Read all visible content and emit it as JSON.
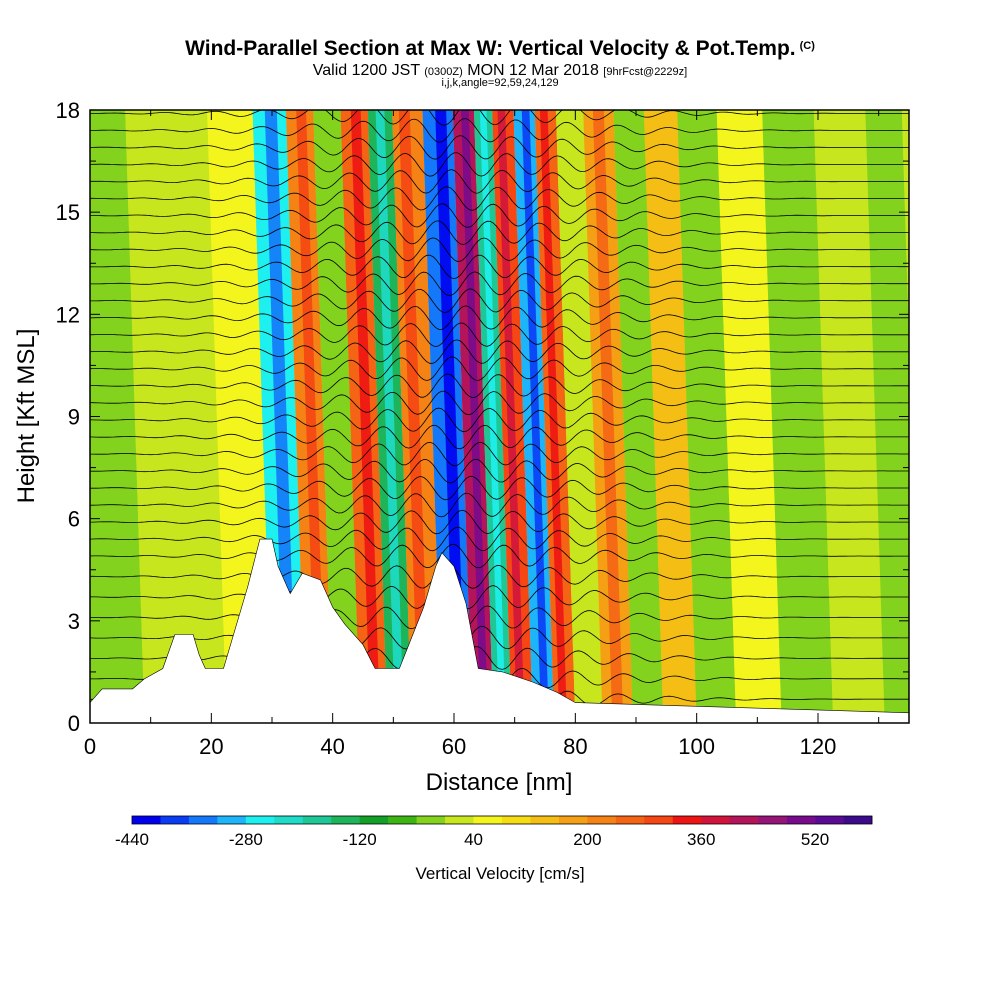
{
  "header": {
    "title": "Wind-Parallel Section at Max W: Vertical Velocity & Pot.Temp.",
    "title_mark": "(C)",
    "subtitle_main": "Valid 1200 JST",
    "subtitle_z": "(0300Z)",
    "subtitle_date": "MON 12 Mar 2018",
    "subtitle_fcst": "[9hrFcst@2229z]",
    "indices": "i,j,k,angle=92,59,24,129"
  },
  "chart_data": {
    "type": "heatmap",
    "xlabel": "Distance [nm]",
    "ylabel": "Height [Kft MSL]",
    "xlim": [
      0,
      135
    ],
    "ylim": [
      0,
      18
    ],
    "x_ticks": [
      0,
      20,
      40,
      60,
      80,
      100,
      120
    ],
    "y_ticks": [
      0,
      3,
      6,
      9,
      12,
      15,
      18
    ],
    "x_tick_labels": [
      "0",
      "20",
      "40",
      "60",
      "80",
      "100",
      "120"
    ],
    "y_tick_labels": [
      "0",
      "3",
      "6",
      "9",
      "12",
      "15",
      "18"
    ],
    "colorbar": {
      "title": "Vertical Velocity [cm/s]",
      "min": -440,
      "max": 600,
      "step": 40,
      "tick_values": [
        -440,
        -280,
        -120,
        40,
        200,
        360,
        520
      ],
      "tick_labels": [
        "-440",
        "-280",
        "-120",
        "40",
        "200",
        "360",
        "520"
      ],
      "colors": [
        "#0000ee",
        "#0a3cf5",
        "#1478fa",
        "#1eb4fa",
        "#1ef0f0",
        "#1edcc8",
        "#1ec896",
        "#1eb45a",
        "#14a028",
        "#3cb414",
        "#82d21e",
        "#c8e61e",
        "#f5f51e",
        "#f5dc14",
        "#f5be14",
        "#f5a014",
        "#f58214",
        "#f56414",
        "#f54614",
        "#ee1414",
        "#d2143c",
        "#b4145a",
        "#961478",
        "#780a8c",
        "#5a0a96",
        "#3c0a8c"
      ]
    },
    "velocity_bands": [
      {
        "x": 0,
        "value": -40
      },
      {
        "x": 18,
        "value": 0
      },
      {
        "x": 27,
        "value": 60
      },
      {
        "x": 33,
        "value": -260
      },
      {
        "x": 38,
        "value": 220
      },
      {
        "x": 42,
        "value": -40
      },
      {
        "x": 47,
        "value": 260
      },
      {
        "x": 51,
        "value": -160
      },
      {
        "x": 55,
        "value": 220
      },
      {
        "x": 61,
        "value": -340
      },
      {
        "x": 65,
        "value": 420
      },
      {
        "x": 68,
        "value": -200
      },
      {
        "x": 71,
        "value": 300
      },
      {
        "x": 75,
        "value": -300
      },
      {
        "x": 78,
        "value": 260
      },
      {
        "x": 82,
        "value": 0
      },
      {
        "x": 87,
        "value": 160
      },
      {
        "x": 92,
        "value": -40
      },
      {
        "x": 97,
        "value": 120
      },
      {
        "x": 103,
        "value": -20
      },
      {
        "x": 110,
        "value": 40
      },
      {
        "x": 118,
        "value": -40
      },
      {
        "x": 127,
        "value": 20
      },
      {
        "x": 135,
        "value": -20
      }
    ],
    "terrain": [
      {
        "x": 0,
        "h": 0.6
      },
      {
        "x": 2,
        "h": 1.0
      },
      {
        "x": 7,
        "h": 1.0
      },
      {
        "x": 9,
        "h": 1.3
      },
      {
        "x": 12,
        "h": 1.6
      },
      {
        "x": 14,
        "h": 2.6
      },
      {
        "x": 17,
        "h": 2.6
      },
      {
        "x": 18,
        "h": 2.0
      },
      {
        "x": 19,
        "h": 1.6
      },
      {
        "x": 22,
        "h": 1.6
      },
      {
        "x": 24,
        "h": 2.8
      },
      {
        "x": 26,
        "h": 4.0
      },
      {
        "x": 28,
        "h": 5.4
      },
      {
        "x": 30,
        "h": 5.4
      },
      {
        "x": 31,
        "h": 4.6
      },
      {
        "x": 33,
        "h": 3.8
      },
      {
        "x": 35,
        "h": 4.4
      },
      {
        "x": 38,
        "h": 4.2
      },
      {
        "x": 40,
        "h": 3.4
      },
      {
        "x": 42,
        "h": 2.9
      },
      {
        "x": 45,
        "h": 2.3
      },
      {
        "x": 47,
        "h": 1.6
      },
      {
        "x": 51,
        "h": 1.6
      },
      {
        "x": 53,
        "h": 2.5
      },
      {
        "x": 55,
        "h": 3.4
      },
      {
        "x": 57,
        "h": 4.6
      },
      {
        "x": 58,
        "h": 5.0
      },
      {
        "x": 60,
        "h": 4.6
      },
      {
        "x": 62,
        "h": 3.5
      },
      {
        "x": 64,
        "h": 1.6
      },
      {
        "x": 68,
        "h": 1.5
      },
      {
        "x": 73,
        "h": 1.2
      },
      {
        "x": 77,
        "h": 0.9
      },
      {
        "x": 80,
        "h": 0.6
      },
      {
        "x": 135,
        "h": 0.3
      }
    ],
    "potential_temperature_contours": [
      {
        "base": 0.7
      },
      {
        "base": 1.3
      },
      {
        "base": 1.9
      },
      {
        "base": 2.5
      },
      {
        "base": 3.1
      },
      {
        "base": 3.7
      },
      {
        "base": 4.3
      },
      {
        "base": 4.9
      },
      {
        "base": 5.4
      },
      {
        "base": 5.9
      },
      {
        "base": 6.4
      },
      {
        "base": 6.9
      },
      {
        "base": 7.4
      },
      {
        "base": 7.9
      },
      {
        "base": 8.4
      },
      {
        "base": 8.9
      },
      {
        "base": 9.4
      },
      {
        "base": 9.9
      },
      {
        "base": 10.4
      },
      {
        "base": 10.9
      },
      {
        "base": 11.4
      },
      {
        "base": 11.9
      },
      {
        "base": 12.4
      },
      {
        "base": 12.9
      },
      {
        "base": 13.4
      },
      {
        "base": 13.9
      },
      {
        "base": 14.4
      },
      {
        "base": 14.9
      },
      {
        "base": 15.4
      },
      {
        "base": 15.9
      },
      {
        "base": 16.4
      },
      {
        "base": 16.9
      },
      {
        "base": 17.4
      },
      {
        "base": 17.9
      }
    ]
  }
}
